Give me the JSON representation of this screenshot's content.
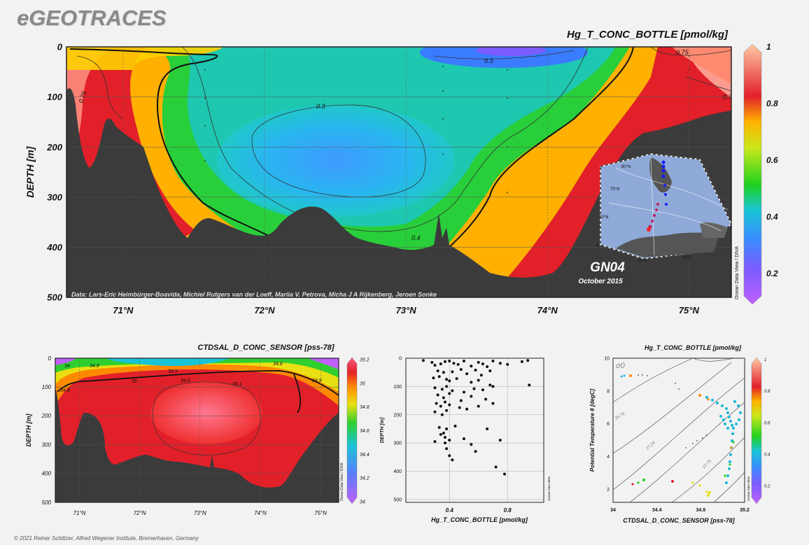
{
  "header": {
    "brand": "eGEOTRACES"
  },
  "footer": {
    "copyright": "© 2021 Reiner Schlitzer, Alfred Wegener Institute, Bremerhaven, Germany"
  },
  "colors": {
    "deep_low": "#9b38ff",
    "low": "#3a8cff",
    "mid": "#1fd21f",
    "yellow": "#ffe400",
    "high": "#e2202a",
    "max": "#ffc7a0",
    "seafloor": "#3b3b3b"
  },
  "chart_data": [
    {
      "type": "heatmap",
      "title": "Hg_T_CONC_BOTTLE [pmol/kg]",
      "ylabel": "DEPTH [m]",
      "xlabel": "",
      "xticks": [
        "71°N",
        "72°N",
        "73°N",
        "74°N",
        "75°N"
      ],
      "xtick_values": [
        71,
        72,
        73,
        74,
        75
      ],
      "xlim": [
        70.6,
        75.3
      ],
      "yticks": [
        0,
        100,
        200,
        300,
        400,
        500
      ],
      "ylim": [
        0,
        500
      ],
      "y_inverted": true,
      "colorbar": {
        "ticks": [
          0.2,
          0.4,
          0.6,
          0.8,
          1
        ],
        "range": [
          0.1,
          1
        ]
      },
      "contour_labels": [
        {
          "text": "0.75",
          "lat": 70.8,
          "depth": 100
        },
        {
          "text": "0.3",
          "lat": 73.6,
          "depth": 25
        },
        {
          "text": "0.3",
          "lat": 72.4,
          "depth": 120
        },
        {
          "text": "0.4",
          "lat": 73.1,
          "depth": 390
        },
        {
          "text": "0.75",
          "lat": 74.95,
          "depth": 10
        },
        {
          "text": "0.7",
          "lat": 75.25,
          "depth": 100
        }
      ],
      "credit": "Data: Lars-Eric Heimbürger-Boavida, Michiel Rutgers van der Loeff, Mariia V. Petrova, Micha J A Rijkenberg, Jeroen Sonke",
      "side_label": "Ocean Data View / DIVA",
      "inset_map": {
        "cruise": "GN04",
        "date": "October 2015",
        "lat_labels": [
          "80°N",
          "75°N",
          "70°N"
        ],
        "lon_labels": [
          "0",
          "20°E",
          "40°E"
        ]
      }
    },
    {
      "type": "heatmap",
      "title": "CTDSAL_D_CONC_SENSOR [pss-78]",
      "ylabel": "DEPTH [m]",
      "xticks": [
        "71°N",
        "72°N",
        "73°N",
        "74°N",
        "75°N"
      ],
      "xtick_values": [
        71,
        72,
        73,
        74,
        75
      ],
      "xlim": [
        70.6,
        75.3
      ],
      "yticks": [
        0,
        100,
        200,
        300,
        400,
        500
      ],
      "ylim": [
        0,
        500
      ],
      "colorbar": {
        "ticks": [
          34,
          34.2,
          34.4,
          34.6,
          34.8,
          35,
          35.2
        ],
        "range": [
          34,
          35.2
        ]
      },
      "contour_labels": [
        {
          "text": "34",
          "lat": 70.8,
          "depth": 20
        },
        {
          "text": "34.8",
          "lat": 71.2,
          "depth": 20
        },
        {
          "text": "34.9",
          "lat": 72.5,
          "depth": 30
        },
        {
          "text": "35",
          "lat": 71.8,
          "depth": 80
        },
        {
          "text": "34.9",
          "lat": 72.9,
          "depth": 70
        },
        {
          "text": "35.1",
          "lat": 73.6,
          "depth": 100
        },
        {
          "text": "34.8",
          "lat": 70.8,
          "depth": 110
        },
        {
          "text": "34.9",
          "lat": 75.0,
          "depth": 70
        },
        {
          "text": "34.8",
          "lat": 74.6,
          "depth": 10
        }
      ],
      "side_label": "Ocean Data View / DIVA"
    },
    {
      "type": "scatter",
      "title": "",
      "xlabel": "Hg_T_CONC_BOTTLE [pmol/kg]",
      "ylabel": "DEPTH [m]",
      "xticks": [
        0.4,
        0.8
      ],
      "xlim": [
        0.1,
        1.05
      ],
      "yticks": [
        0,
        100,
        200,
        300,
        400,
        500
      ],
      "ylim": [
        0,
        510
      ],
      "side_label": "Ocean Data View",
      "x": [
        0.22,
        0.28,
        0.3,
        0.34,
        0.37,
        0.4,
        0.43,
        0.46,
        0.5,
        0.55,
        0.6,
        0.63,
        0.66,
        0.7,
        0.75,
        0.8,
        0.9,
        0.94,
        0.32,
        0.36,
        0.42,
        0.48,
        0.52,
        0.58,
        0.62,
        0.68,
        0.29,
        0.33,
        0.38,
        0.4,
        0.45,
        0.55,
        0.6,
        0.68,
        0.95,
        0.3,
        0.35,
        0.38,
        0.42,
        0.5,
        0.57,
        0.63,
        0.7,
        0.32,
        0.36,
        0.4,
        0.48,
        0.55,
        0.65,
        0.31,
        0.34,
        0.37,
        0.4,
        0.47,
        0.52,
        0.6,
        0.7,
        0.3,
        0.35,
        0.38,
        0.33,
        0.38,
        0.44,
        0.66,
        0.34,
        0.36,
        0.37,
        0.5,
        0.75,
        0.3,
        0.37,
        0.4,
        0.55,
        0.38,
        0.58,
        0.4,
        0.42,
        0.72,
        0.78
      ],
      "y": [
        8,
        15,
        25,
        20,
        12,
        10,
        18,
        22,
        10,
        28,
        15,
        20,
        30,
        10,
        18,
        22,
        12,
        8,
        45,
        50,
        48,
        40,
        55,
        42,
        60,
        45,
        70,
        65,
        75,
        80,
        72,
        85,
        78,
        95,
        95,
        105,
        110,
        100,
        115,
        120,
        108,
        112,
        100,
        130,
        140,
        125,
        150,
        135,
        145,
        160,
        170,
        155,
        165,
        175,
        180,
        170,
        160,
        190,
        200,
        185,
        245,
        250,
        240,
        250,
        270,
        265,
        280,
        285,
        290,
        295,
        300,
        290,
        305,
        320,
        330,
        345,
        360,
        385,
        410
      ],
      "names": []
    },
    {
      "type": "scatter",
      "title": "Hg_T_CONC_BOTTLE [pmol/kg]",
      "xlabel": "CTDSAL_D_CONC_SENSOR [pss-78]",
      "ylabel": "Potential Temperature θ [degC]",
      "xticks": [
        34,
        34.4,
        34.8,
        35.2
      ],
      "xlim": [
        34,
        35.2
      ],
      "yticks": [
        2,
        4,
        6,
        8,
        10
      ],
      "ylim": [
        1.2,
        10
      ],
      "isopycnal_label": "σ0",
      "isopycnals": [
        "26.75",
        "27.25",
        "27.75"
      ],
      "colorbar": {
        "ticks": [
          0.2,
          0.4,
          0.6,
          0.8,
          1
        ],
        "range": [
          0.1,
          1
        ]
      },
      "side_label": "Ocean Data View"
    }
  ]
}
